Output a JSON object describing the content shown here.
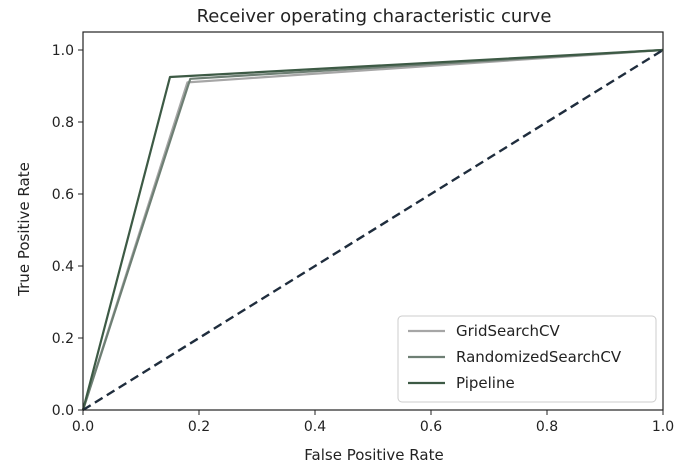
{
  "chart_data": {
    "type": "line",
    "title": "Receiver operating characteristic curve",
    "xlabel": "False Positive Rate",
    "ylabel": "True Positive Rate",
    "xlim": [
      0.0,
      1.0
    ],
    "ylim": [
      0.0,
      1.05
    ],
    "xticks": [
      "0.0",
      "0.2",
      "0.4",
      "0.6",
      "0.8",
      "1.0"
    ],
    "yticks": [
      "0.0",
      "0.2",
      "0.4",
      "0.6",
      "0.8",
      "1.0"
    ],
    "grid": false,
    "legend_position": "lower-right",
    "series": [
      {
        "name": "GridSearchCV",
        "color": "#a6a6a6",
        "x": [
          0.0,
          0.18,
          1.0
        ],
        "y": [
          0.0,
          0.91,
          1.0
        ]
      },
      {
        "name": "RandomizedSearchCV",
        "color": "#6e7f74",
        "x": [
          0.0,
          0.185,
          1.0
        ],
        "y": [
          0.0,
          0.92,
          1.0
        ]
      },
      {
        "name": "Pipeline",
        "color": "#3d5a45",
        "x": [
          0.0,
          0.15,
          1.0
        ],
        "y": [
          0.0,
          0.925,
          1.0
        ]
      }
    ],
    "reference_line": {
      "style": "dashed",
      "color": "#1f2d3d",
      "x": [
        0.0,
        1.0
      ],
      "y": [
        0.0,
        1.0
      ]
    }
  }
}
